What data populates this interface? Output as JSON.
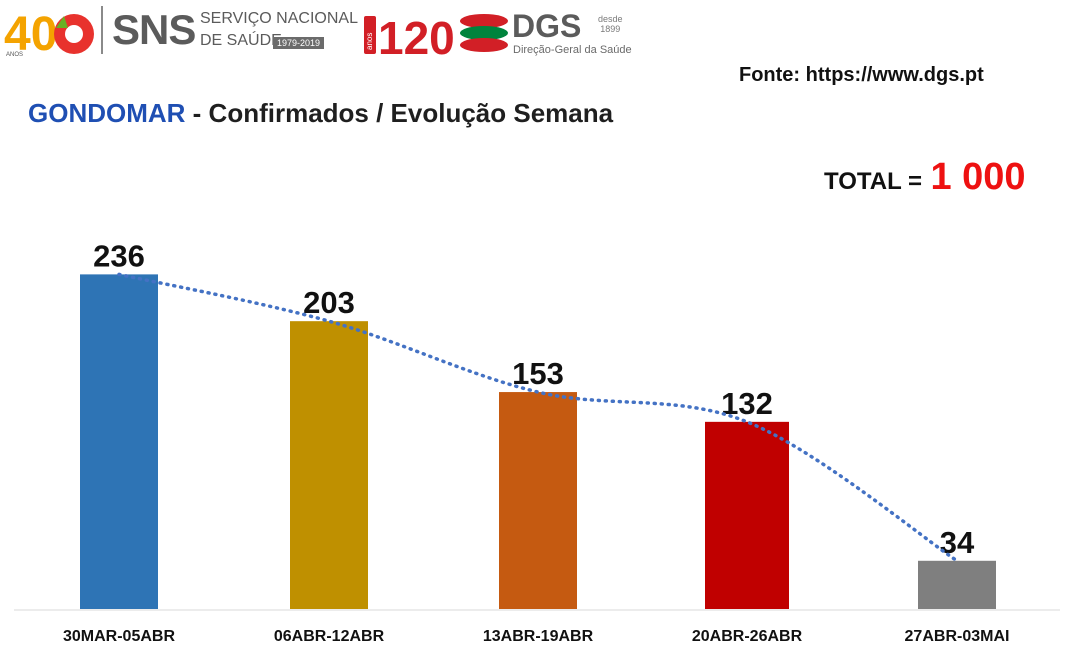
{
  "header": {
    "sns_word": "SNS",
    "sns_line1": "SERVIÇO NACIONAL",
    "sns_line2": "DE SAÚDE",
    "sns_years": "1979-2019",
    "dgs_word": "DGS",
    "dgs_desde": "desde",
    "dgs_year": "1899",
    "dgs_sub": "Direção-Geral da Saúde",
    "logo_40_text": "40",
    "logo_40_anos": "ANOS",
    "logo_120_text": "120",
    "logo_120_anos": "anos"
  },
  "source": "Fonte: https://www.dgs.pt",
  "title": {
    "highlight": "GONDOMAR",
    "rest": " - Confirmados / Evolução Semana"
  },
  "total": {
    "label": "TOTAL =",
    "value": "1 000"
  },
  "colors": {
    "title_highlight": "#1f4fb3",
    "total_value": "#ee1111",
    "trendline": "#4472c4"
  },
  "chart_data": {
    "type": "bar",
    "categories": [
      "30MAR-05ABR",
      "06ABR-12ABR",
      "13ABR-19ABR",
      "20ABR-26ABR",
      "27ABR-03MAI"
    ],
    "values": [
      236,
      203,
      153,
      132,
      34
    ],
    "bar_colors": [
      "#2e74b5",
      "#bf9000",
      "#c55a11",
      "#c00000",
      "#7f7f7f"
    ],
    "trendline": "dotted",
    "title": "GONDOMAR - Confirmados / Evolução Semana",
    "xlabel": "",
    "ylabel": "",
    "ylim": [
      0,
      300
    ],
    "grid": false,
    "legend": "none"
  }
}
